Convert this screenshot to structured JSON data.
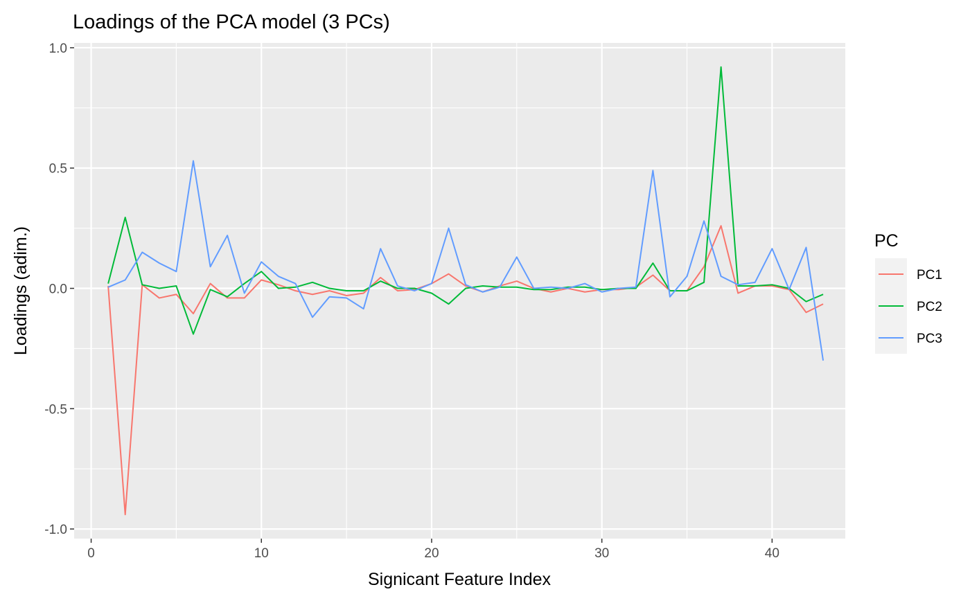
{
  "chart_data": {
    "type": "line",
    "title": "Loadings of the PCA model (3 PCs)",
    "xlabel": "Signicant Feature Index",
    "ylabel": "Loadings (adim.)",
    "xlim": [
      -1,
      44.3
    ],
    "ylim": [
      -1.04,
      1.02
    ],
    "xticks": [
      0,
      10,
      20,
      30,
      40
    ],
    "xtick_labels": [
      "0",
      "10",
      "20",
      "30",
      "40"
    ],
    "yticks": [
      -1.0,
      -0.5,
      0.0,
      0.5,
      1.0
    ],
    "ytick_labels": [
      "-1.0",
      "-0.5",
      "0.0",
      "0.5",
      "1.0"
    ],
    "grid": true,
    "legend": {
      "title": "PC",
      "placement": "right"
    },
    "x": [
      1,
      2,
      3,
      4,
      5,
      6,
      7,
      8,
      9,
      10,
      11,
      12,
      13,
      14,
      15,
      16,
      17,
      18,
      19,
      20,
      21,
      22,
      23,
      24,
      25,
      26,
      27,
      28,
      29,
      30,
      31,
      32,
      33,
      34,
      35,
      36,
      37,
      38,
      39,
      40,
      41,
      42,
      43
    ],
    "series": [
      {
        "name": "PC1",
        "color": "#F8766D",
        "values": [
          0.01,
          -0.94,
          0.015,
          -0.04,
          -0.025,
          -0.105,
          0.02,
          -0.04,
          -0.04,
          0.035,
          0.015,
          -0.01,
          -0.025,
          -0.01,
          -0.03,
          -0.02,
          0.045,
          -0.01,
          -0.005,
          0.02,
          0.06,
          0.01,
          -0.015,
          0.01,
          0.03,
          0.0,
          -0.015,
          0.0,
          -0.015,
          -0.005,
          -0.005,
          0.005,
          0.055,
          -0.01,
          -0.01,
          0.09,
          0.26,
          -0.02,
          0.01,
          0.01,
          -0.005,
          -0.1,
          -0.065
        ]
      },
      {
        "name": "PC2",
        "color": "#00BA38",
        "values": [
          0.02,
          0.295,
          0.015,
          0.0,
          0.01,
          -0.19,
          -0.005,
          -0.035,
          0.02,
          0.07,
          0.0,
          0.005,
          0.025,
          0.0,
          -0.01,
          -0.01,
          0.03,
          0.0,
          0.0,
          -0.02,
          -0.065,
          0.0,
          0.01,
          0.005,
          0.005,
          -0.005,
          -0.005,
          0.005,
          0.005,
          -0.005,
          0.0,
          0.0,
          0.105,
          -0.01,
          -0.01,
          0.025,
          0.92,
          0.01,
          0.01,
          0.015,
          0.0,
          -0.055,
          -0.025
        ]
      },
      {
        "name": "PC3",
        "color": "#619CFF",
        "values": [
          0.005,
          0.035,
          0.15,
          0.105,
          0.07,
          0.53,
          0.09,
          0.22,
          -0.02,
          0.11,
          0.05,
          0.02,
          -0.12,
          -0.035,
          -0.04,
          -0.085,
          0.165,
          0.01,
          -0.01,
          0.02,
          0.25,
          0.015,
          -0.015,
          0.005,
          0.13,
          0.0,
          0.005,
          0.0,
          0.02,
          -0.015,
          0.0,
          0.005,
          0.49,
          -0.035,
          0.05,
          0.28,
          0.05,
          0.015,
          0.025,
          0.165,
          -0.005,
          0.17,
          -0.3
        ]
      }
    ]
  }
}
